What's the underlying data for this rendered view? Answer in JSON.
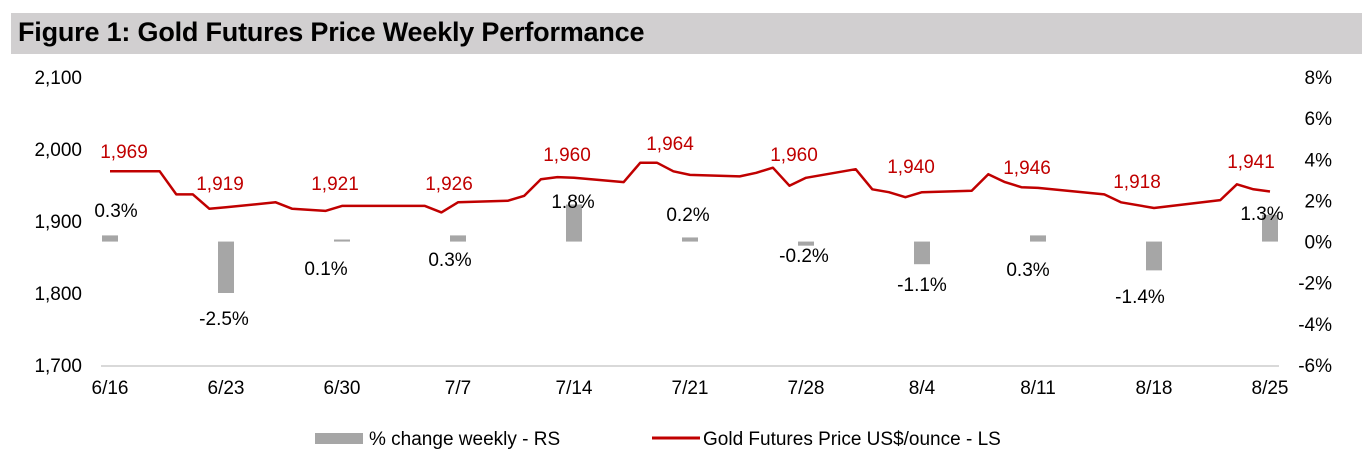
{
  "title": "Figure 1: Gold Futures Price Weekly Performance",
  "colors": {
    "title_bg": "#d1cfd0",
    "price_line": "#c00000",
    "bar": "#a6a6a6",
    "baseline": "#d9d9d9"
  },
  "chart_data": {
    "type": "bar+line",
    "title": "Figure 1: Gold Futures Price Weekly Performance",
    "categories": [
      "6/16",
      "6/23",
      "6/30",
      "7/7",
      "7/14",
      "7/21",
      "7/28",
      "8/4",
      "8/11",
      "8/18",
      "8/25"
    ],
    "left_axis": {
      "ticks": [
        "1,700",
        "1,800",
        "1,900",
        "2,000",
        "2,100"
      ],
      "range": [
        1700,
        2100
      ]
    },
    "right_axis": {
      "ticks": [
        "-6%",
        "-4%",
        "-2%",
        "0%",
        "2%",
        "4%",
        "6%",
        "8%"
      ],
      "range": [
        -6,
        8
      ]
    },
    "series": [
      {
        "name": "% change weekly - RS",
        "type": "bar",
        "axis": "right",
        "values": [
          0.3,
          -2.5,
          0.1,
          0.3,
          1.8,
          0.2,
          -0.2,
          -1.1,
          0.3,
          -1.4,
          1.3
        ],
        "labels": [
          "0.3%",
          "-2.5%",
          "0.1%",
          "0.3%",
          "1.8%",
          "0.2%",
          "-0.2%",
          "-1.1%",
          "0.3%",
          "-1.4%",
          "1.3%"
        ]
      },
      {
        "name": "Gold Futures Price US$/ounce - LS",
        "type": "line",
        "axis": "left",
        "weekly_values": [
          1969,
          1919,
          1921,
          1926,
          1960,
          1964,
          1960,
          1940,
          1946,
          1918,
          1941
        ],
        "labels": [
          "1,969",
          "1,919",
          "1,921",
          "1,926",
          "1,960",
          "1,964",
          "1,960",
          "1,940",
          "1,946",
          "1,918",
          "1,941"
        ],
        "points": [
          [
            0,
            1969
          ],
          [
            3,
            1969
          ],
          [
            4,
            1937
          ],
          [
            5,
            1937
          ],
          [
            6,
            1917
          ],
          [
            7,
            1919
          ],
          [
            10,
            1926
          ],
          [
            11,
            1917
          ],
          [
            13,
            1914
          ],
          [
            14,
            1921
          ],
          [
            19,
            1921
          ],
          [
            20,
            1912
          ],
          [
            21,
            1926
          ],
          [
            24,
            1928
          ],
          [
            25,
            1935
          ],
          [
            26,
            1958
          ],
          [
            27,
            1961
          ],
          [
            28,
            1960
          ],
          [
            31,
            1954
          ],
          [
            32,
            1981
          ],
          [
            33,
            1981
          ],
          [
            34,
            1969
          ],
          [
            35,
            1964
          ],
          [
            38,
            1962
          ],
          [
            39,
            1967
          ],
          [
            40,
            1974
          ],
          [
            41,
            1949
          ],
          [
            42,
            1960
          ],
          [
            45,
            1972
          ],
          [
            46,
            1944
          ],
          [
            47,
            1940
          ],
          [
            48,
            1933
          ],
          [
            49,
            1940
          ],
          [
            52,
            1942
          ],
          [
            53,
            1965
          ],
          [
            54,
            1954
          ],
          [
            55,
            1947
          ],
          [
            56,
            1946
          ],
          [
            60,
            1937
          ],
          [
            61,
            1926
          ],
          [
            63,
            1918
          ],
          [
            67,
            1929
          ],
          [
            68,
            1951
          ],
          [
            69,
            1944
          ],
          [
            70,
            1941
          ]
        ]
      }
    ],
    "legend": {
      "position": "bottom",
      "entries": [
        "% change weekly - RS",
        "Gold Futures Price US$/ounce - LS"
      ]
    },
    "grid": false
  }
}
